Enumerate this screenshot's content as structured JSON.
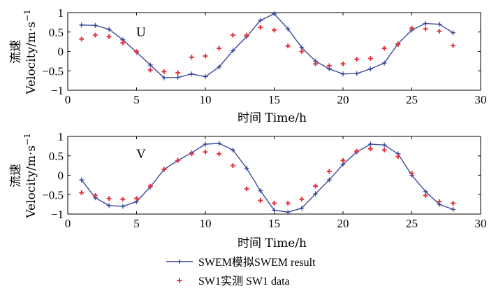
{
  "chart_data": [
    {
      "type": "line",
      "panel_label": "U",
      "xlabel": "时间 Time/h",
      "ylabel_cn": "流速",
      "ylabel_en": "Velocity/m·s",
      "ylabel_sup": "−1",
      "xlim": [
        0,
        30
      ],
      "ylim": [
        -1,
        1
      ],
      "xticks": [
        0,
        5,
        10,
        15,
        20,
        25,
        30
      ],
      "yticks": [
        -1,
        -0.5,
        0,
        0.5,
        1
      ],
      "ytick_labels": [
        "−1",
        "−0.5",
        "0",
        "0.5",
        "1"
      ],
      "series": [
        {
          "name": "SWEM模拟SWEM result",
          "style": "line-marker",
          "color": "#3b4a9a",
          "x": [
            1,
            2,
            3,
            4,
            5,
            6,
            7,
            8,
            9,
            10,
            11,
            12,
            13,
            14,
            15,
            16,
            17,
            18,
            19,
            20,
            21,
            22,
            23,
            24,
            25,
            26,
            27,
            28
          ],
          "y": [
            0.68,
            0.67,
            0.57,
            0.3,
            -0.02,
            -0.35,
            -0.68,
            -0.67,
            -0.58,
            -0.65,
            -0.4,
            0.02,
            0.38,
            0.8,
            0.97,
            0.58,
            0.1,
            -0.25,
            -0.45,
            -0.58,
            -0.57,
            -0.45,
            -0.3,
            0.2,
            0.55,
            0.72,
            0.7,
            0.48
          ]
        },
        {
          "name": "SW1实测 SW1 data",
          "style": "scatter",
          "color": "#e8323c",
          "x": [
            1,
            2,
            3,
            4,
            5,
            6,
            7,
            8,
            9,
            10,
            11,
            12,
            13,
            14,
            15,
            16,
            17,
            18,
            19,
            20,
            21,
            22,
            23,
            24,
            25,
            26,
            27,
            28
          ],
          "y": [
            0.32,
            0.42,
            0.38,
            0.22,
            0.0,
            -0.48,
            -0.52,
            -0.55,
            -0.15,
            -0.12,
            0.08,
            0.42,
            0.42,
            0.62,
            0.55,
            0.14,
            0.0,
            -0.32,
            -0.37,
            -0.32,
            -0.2,
            -0.18,
            0.08,
            0.18,
            0.6,
            0.58,
            0.52,
            0.15
          ]
        }
      ]
    },
    {
      "type": "line",
      "panel_label": "V",
      "xlabel": "时间 Time/h",
      "ylabel_cn": "流速",
      "ylabel_en": "Velocity/m·s",
      "ylabel_sup": "−1",
      "xlim": [
        0,
        30
      ],
      "ylim": [
        -1,
        1
      ],
      "xticks": [
        0,
        5,
        10,
        15,
        20,
        25,
        30
      ],
      "yticks": [
        -1,
        -0.5,
        0,
        0.5,
        1
      ],
      "ytick_labels": [
        "−1",
        "−0.5",
        "0",
        "0.5",
        "1"
      ],
      "series": [
        {
          "name": "SWEM模拟SWEM result",
          "style": "line-marker",
          "color": "#3b4a9a",
          "x": [
            1,
            2,
            3,
            4,
            5,
            6,
            7,
            8,
            9,
            10,
            11,
            12,
            13,
            14,
            15,
            16,
            17,
            18,
            19,
            20,
            21,
            22,
            23,
            24,
            25,
            26,
            27,
            28
          ],
          "y": [
            -0.12,
            -0.58,
            -0.78,
            -0.8,
            -0.68,
            -0.3,
            0.15,
            0.38,
            0.58,
            0.8,
            0.82,
            0.65,
            0.18,
            -0.4,
            -0.9,
            -0.95,
            -0.85,
            -0.48,
            -0.12,
            0.28,
            0.6,
            0.8,
            0.78,
            0.55,
            0.0,
            -0.42,
            -0.75,
            -0.88
          ]
        },
        {
          "name": "SW1实测 SW1 data",
          "style": "scatter",
          "color": "#e8323c",
          "x": [
            1,
            2,
            3,
            4,
            5,
            6,
            7,
            8,
            9,
            10,
            11,
            12,
            13,
            14,
            15,
            16,
            17,
            18,
            19,
            20,
            21,
            22,
            23,
            24,
            25,
            26,
            27,
            28
          ],
          "y": [
            -0.45,
            -0.52,
            -0.6,
            -0.62,
            -0.6,
            -0.28,
            0.15,
            0.38,
            0.55,
            0.6,
            0.55,
            0.25,
            -0.35,
            -0.65,
            -0.72,
            -0.72,
            -0.62,
            -0.28,
            0.1,
            0.38,
            0.62,
            0.68,
            0.65,
            0.48,
            0.05,
            -0.52,
            -0.68,
            -0.72
          ]
        }
      ]
    }
  ],
  "legend": {
    "items": [
      {
        "label": "SWEM模拟SWEM result",
        "style": "line-marker",
        "color": "#3b4a9a"
      },
      {
        "label": "SW1实测 SW1 data",
        "style": "scatter",
        "color": "#e8323c"
      }
    ]
  }
}
